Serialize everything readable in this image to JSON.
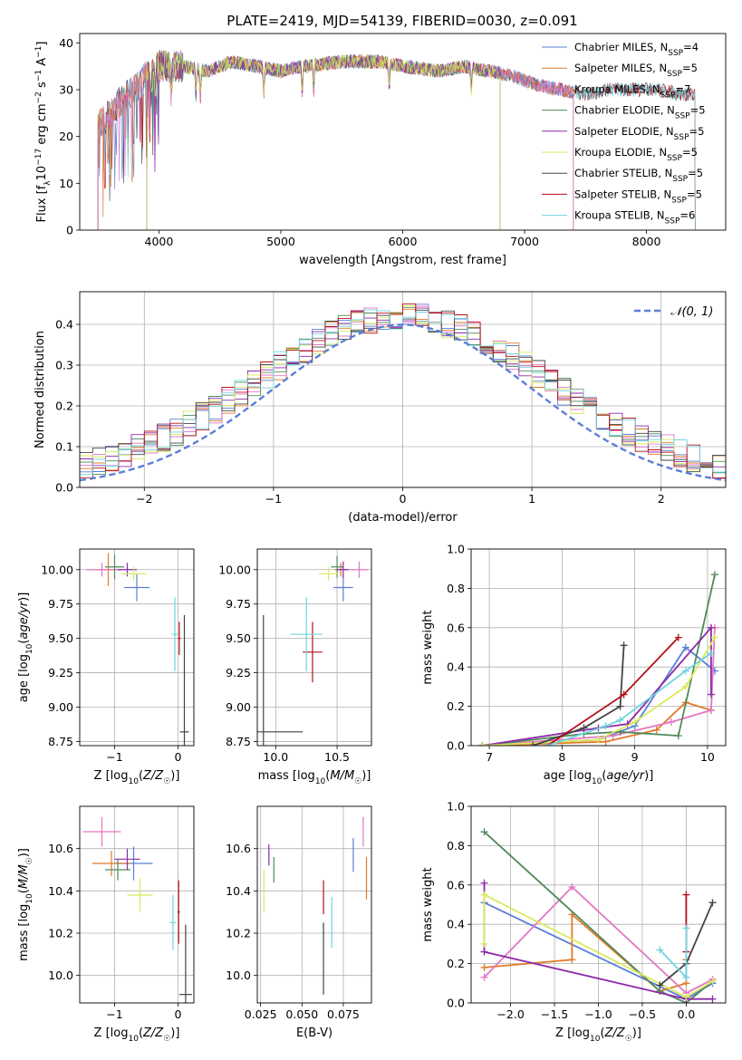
{
  "figure_title": "PLATE=2419, MJD=54139, FIBERID=0030, z=0.091",
  "colors": {
    "Chabrier MILES": "#5b7fd6",
    "Salpeter MILES": "#e07a2a",
    "Kroupa MILES": "#e377c2",
    "Chabrier ELODIE": "#4f8a5b",
    "Salpeter ELODIE": "#8e2aa8",
    "Kroupa ELODIE": "#d9ea5a",
    "Chabrier STELIB": "#444444",
    "Salpeter STELIB": "#b3101a",
    "Kroupa STELIB": "#6fd3e0",
    "gauss": "#5b7fd6"
  },
  "chart_data": [
    {
      "id": "spectrum",
      "type": "line",
      "xlabel": "wavelength [Angstrom, rest frame]",
      "ylabel": "Flux [f_λ10^-17 erg cm^-2 s^-1 A^-1]",
      "xlim": [
        3350,
        8650
      ],
      "ylim": [
        0,
        42
      ],
      "xticks": [
        4000,
        5000,
        6000,
        7000,
        8000
      ],
      "yticks": [
        0,
        10,
        20,
        30,
        40
      ],
      "legend_position": "top-right",
      "legend": [
        {
          "label": "Chabrier MILES, N",
          "sub": "SSP",
          "suffix": "=4",
          "series": "Chabrier MILES"
        },
        {
          "label": "Salpeter MILES, N",
          "sub": "SSP",
          "suffix": "=5",
          "series": "Salpeter MILES"
        },
        {
          "label": "Kroupa MILES, N",
          "sub": "SSP",
          "suffix": "=7",
          "series": "Kroupa MILES"
        },
        {
          "label": "Chabrier ELODIE, N",
          "sub": "SSP",
          "suffix": "=5",
          "series": "Chabrier ELODIE"
        },
        {
          "label": "Salpeter ELODIE, N",
          "sub": "SSP",
          "suffix": "=5",
          "series": "Salpeter ELODIE"
        },
        {
          "label": "Kroupa ELODIE, N",
          "sub": "SSP",
          "suffix": "=5",
          "series": "Kroupa ELODIE"
        },
        {
          "label": "Chabrier STELIB, N",
          "sub": "SSP",
          "suffix": "=5",
          "series": "Chabrier STELIB"
        },
        {
          "label": "Salpeter STELIB, N",
          "sub": "SSP",
          "suffix": "=5",
          "series": "Salpeter STELIB"
        },
        {
          "label": "Kroupa STELIB, N",
          "sub": "SSP",
          "suffix": "=6",
          "series": "Kroupa STELIB"
        }
      ],
      "continuum": [
        [
          3500,
          22
        ],
        [
          3600,
          25
        ],
        [
          3700,
          28
        ],
        [
          3800,
          30
        ],
        [
          3900,
          33
        ],
        [
          4000,
          35
        ],
        [
          4200,
          35
        ],
        [
          4400,
          34
        ],
        [
          4600,
          36
        ],
        [
          4800,
          35
        ],
        [
          5000,
          34
        ],
        [
          5200,
          35
        ],
        [
          5500,
          36
        ],
        [
          5800,
          36
        ],
        [
          6000,
          35
        ],
        [
          6300,
          34
        ],
        [
          6500,
          35
        ],
        [
          6700,
          34
        ],
        [
          6900,
          33
        ],
        [
          7100,
          31
        ],
        [
          7300,
          30
        ],
        [
          7500,
          29
        ],
        [
          7700,
          30
        ],
        [
          7900,
          30
        ],
        [
          8100,
          30
        ],
        [
          8300,
          29
        ],
        [
          8400,
          29
        ]
      ],
      "series_ranges": [
        {
          "series": "Chabrier MILES",
          "x": [
            3500,
            7400
          ]
        },
        {
          "series": "Salpeter MILES",
          "x": [
            3500,
            7400
          ]
        },
        {
          "series": "Kroupa MILES",
          "x": [
            3500,
            7400
          ]
        },
        {
          "series": "Chabrier ELODIE",
          "x": [
            3900,
            6800
          ]
        },
        {
          "series": "Salpeter ELODIE",
          "x": [
            3900,
            6800
          ]
        },
        {
          "series": "Kroupa ELODIE",
          "x": [
            3900,
            6800
          ]
        },
        {
          "series": "Chabrier STELIB",
          "x": [
            3500,
            8400
          ]
        },
        {
          "series": "Salpeter STELIB",
          "x": [
            3500,
            8400
          ]
        },
        {
          "series": "Kroupa STELIB",
          "x": [
            3500,
            8400
          ]
        }
      ]
    },
    {
      "id": "residuals",
      "type": "line",
      "xlabel": "(data-model)/error",
      "ylabel": "Normed distribution",
      "xlim": [
        -2.5,
        2.5
      ],
      "ylim": [
        0,
        0.48
      ],
      "xticks": [
        -2,
        -1,
        0,
        1,
        2
      ],
      "yticks": [
        0.0,
        0.1,
        0.2,
        0.3,
        0.4
      ],
      "grid": true,
      "legend_position": "top-right",
      "legend_label": "𝒩(0, 1)",
      "gaussian": {
        "mean": 0,
        "sigma": 1
      },
      "bin_width": 0.1
    },
    {
      "id": "age-Z",
      "type": "scatter",
      "xlabel": "Z [log10(Z/Z☉)]",
      "ylabel": "age  [log10(age/yr)]",
      "xlim": [
        -1.55,
        0.25
      ],
      "ylim": [
        8.72,
        10.15
      ],
      "xticks": [
        -1,
        0
      ],
      "yticks": [
        8.75,
        9.0,
        9.25,
        9.5,
        9.75,
        10.0
      ],
      "grid": true,
      "points": [
        {
          "series": "Chabrier MILES",
          "x": -0.65,
          "xerr": 0.2,
          "y": 9.87,
          "yerr": 0.1
        },
        {
          "series": "Salpeter MILES",
          "x": -1.1,
          "xerr": 0.2,
          "y": 10.0,
          "yerr": 0.12
        },
        {
          "series": "Kroupa MILES",
          "x": -1.2,
          "xerr": 0.25,
          "y": 10.0,
          "yerr": 0.05
        },
        {
          "series": "Chabrier ELODIE",
          "x": -1.0,
          "xerr": 0.15,
          "y": 10.02,
          "yerr": 0.09
        },
        {
          "series": "Salpeter ELODIE",
          "x": -0.8,
          "xerr": 0.15,
          "y": 10.0,
          "yerr": 0.05
        },
        {
          "series": "Kroupa ELODIE",
          "x": -0.7,
          "xerr": 0.2,
          "y": 9.97,
          "yerr": 0.05
        },
        {
          "series": "Chabrier STELIB",
          "x": 0.1,
          "xerr": 0.07,
          "y": 8.82,
          "yerr": 0.85
        },
        {
          "series": "Salpeter STELIB",
          "x": 0.02,
          "xerr": 0.02,
          "y": 9.5,
          "yerr": 0.12
        },
        {
          "series": "Kroupa STELIB",
          "x": -0.05,
          "xerr": 0.05,
          "y": 9.53,
          "yerr": 0.27
        }
      ]
    },
    {
      "id": "age-mass",
      "type": "scatter",
      "xlabel": "mass [log10(M/M☉)]",
      "ylabel": "",
      "xlim": [
        9.85,
        10.78
      ],
      "ylim": [
        8.72,
        10.15
      ],
      "xticks": [
        10.0,
        10.5
      ],
      "yticks": [
        8.75,
        9.0,
        9.25,
        9.5,
        9.75,
        10.0
      ],
      "grid": true,
      "points": [
        {
          "series": "Chabrier MILES",
          "x": 10.55,
          "xerr": 0.08,
          "y": 9.87,
          "yerr": 0.1
        },
        {
          "series": "Salpeter MILES",
          "x": 10.53,
          "xerr": 0.05,
          "y": 10.0,
          "yerr": 0.05
        },
        {
          "series": "Kroupa MILES",
          "x": 10.68,
          "xerr": 0.07,
          "y": 10.0,
          "yerr": 0.06
        },
        {
          "series": "Chabrier ELODIE",
          "x": 10.5,
          "xerr": 0.05,
          "y": 10.02,
          "yerr": 0.08
        },
        {
          "series": "Salpeter ELODIE",
          "x": 10.55,
          "xerr": 0.05,
          "y": 10.0,
          "yerr": 0.06
        },
        {
          "series": "Kroupa ELODIE",
          "x": 10.43,
          "xerr": 0.08,
          "y": 9.97,
          "yerr": 0.05
        },
        {
          "series": "Chabrier STELIB",
          "x": 9.9,
          "xerr": 0.32,
          "y": 8.82,
          "yerr": 0.85
        },
        {
          "series": "Salpeter STELIB",
          "x": 10.3,
          "xerr": 0.08,
          "y": 9.4,
          "yerr": 0.22
        },
        {
          "series": "Kroupa STELIB",
          "x": 10.25,
          "xerr": 0.13,
          "y": 9.53,
          "yerr": 0.27
        }
      ]
    },
    {
      "id": "weight-age",
      "type": "line",
      "xlabel": "age  [log10(age/yr)]",
      "ylabel": "mass weight",
      "xlim": [
        6.75,
        10.25
      ],
      "ylim": [
        0,
        1.0
      ],
      "xticks": [
        7,
        8,
        9,
        10
      ],
      "yticks": [
        0.0,
        0.2,
        0.4,
        0.6,
        0.8,
        1.0
      ],
      "grid": true,
      "series": [
        {
          "name": "Chabrier MILES",
          "x": [
            6.9,
            8.5,
            9.0,
            9.7,
            10.1
          ],
          "values": [
            0.0,
            0.03,
            0.1,
            0.5,
            0.38
          ]
        },
        {
          "name": "Salpeter MILES",
          "x": [
            6.9,
            8.6,
            9.3,
            9.7,
            10.05
          ],
          "values": [
            0.0,
            0.02,
            0.08,
            0.22,
            0.18
          ]
        },
        {
          "name": "Kroupa MILES",
          "x": [
            6.9,
            8.7,
            9.5,
            10.05,
            10.1
          ],
          "values": [
            0.0,
            0.05,
            0.12,
            0.18,
            0.6
          ]
        },
        {
          "name": "Chabrier ELODIE",
          "x": [
            6.9,
            8.3,
            8.8,
            9.6,
            10.1
          ],
          "values": [
            0.0,
            0.06,
            0.07,
            0.05,
            0.87
          ]
        },
        {
          "name": "Salpeter ELODIE",
          "x": [
            6.9,
            8.5,
            8.9,
            10.05,
            10.05
          ],
          "values": [
            0.0,
            0.09,
            0.11,
            0.6,
            0.26
          ]
        },
        {
          "name": "Kroupa ELODIE",
          "x": [
            6.9,
            8.5,
            9.0,
            9.7,
            10.1
          ],
          "values": [
            0.0,
            0.03,
            0.12,
            0.3,
            0.55
          ]
        },
        {
          "name": "Chabrier STELIB",
          "x": [
            7.6,
            8.3,
            8.8,
            8.85
          ],
          "values": [
            0.0,
            0.09,
            0.2,
            0.51
          ]
        },
        {
          "name": "Salpeter STELIB",
          "x": [
            7.8,
            8.85,
            9.6
          ],
          "values": [
            0.0,
            0.26,
            0.55
          ]
        },
        {
          "name": "Kroupa STELIB",
          "x": [
            7.8,
            8.6,
            8.8,
            9.7,
            10.05
          ],
          "values": [
            0.0,
            0.1,
            0.13,
            0.38,
            0.47
          ]
        }
      ]
    },
    {
      "id": "mass-Z",
      "type": "scatter",
      "xlabel": "Z [log10(Z/Z☉)]",
      "ylabel": "mass [log10(M/M☉)]",
      "xlim": [
        -1.55,
        0.25
      ],
      "ylim": [
        9.87,
        10.8
      ],
      "xticks": [
        -1,
        0
      ],
      "yticks": [
        10.0,
        10.2,
        10.4,
        10.6
      ],
      "grid": true,
      "points": [
        {
          "series": "Chabrier MILES",
          "x": -0.7,
          "xerr": 0.3,
          "y": 10.53,
          "yerr": 0.08
        },
        {
          "series": "Salpeter MILES",
          "x": -1.05,
          "xerr": 0.3,
          "y": 10.53,
          "yerr": 0.06
        },
        {
          "series": "Kroupa MILES",
          "x": -1.2,
          "xerr": 0.3,
          "y": 10.68,
          "yerr": 0.07
        },
        {
          "series": "Chabrier ELODIE",
          "x": -0.95,
          "xerr": 0.2,
          "y": 10.5,
          "yerr": 0.05
        },
        {
          "series": "Salpeter ELODIE",
          "x": -0.8,
          "xerr": 0.2,
          "y": 10.55,
          "yerr": 0.05
        },
        {
          "series": "Kroupa ELODIE",
          "x": -0.6,
          "xerr": 0.2,
          "y": 10.38,
          "yerr": 0.08
        },
        {
          "series": "Chabrier STELIB",
          "x": 0.12,
          "xerr": 0.1,
          "y": 9.91,
          "yerr": 0.33
        },
        {
          "series": "Salpeter STELIB",
          "x": 0.01,
          "xerr": 0.02,
          "y": 10.3,
          "yerr": 0.15
        },
        {
          "series": "Kroupa STELIB",
          "x": -0.08,
          "xerr": 0.05,
          "y": 10.25,
          "yerr": 0.13
        }
      ]
    },
    {
      "id": "mass-EBV",
      "type": "scatter",
      "xlabel": "E(B-V)",
      "ylabel": "",
      "xlim": [
        0.023,
        0.092
      ],
      "ylim": [
        9.87,
        10.8
      ],
      "xticks": [
        0.025,
        0.05,
        0.075
      ],
      "xtick_labels": [
        "0.025",
        "0.050",
        "0.075"
      ],
      "yticks": [
        10.0,
        10.2,
        10.4,
        10.6
      ],
      "grid": true,
      "points": [
        {
          "series": "Chabrier MILES",
          "x": 0.081,
          "y": 10.57,
          "yerr": 0.08
        },
        {
          "series": "Salpeter MILES",
          "x": 0.089,
          "y": 10.46,
          "yerr": 0.1
        },
        {
          "series": "Kroupa MILES",
          "x": 0.087,
          "y": 10.68,
          "yerr": 0.07
        },
        {
          "series": "Chabrier ELODIE",
          "x": 0.033,
          "y": 10.5,
          "yerr": 0.06
        },
        {
          "series": "Salpeter ELODIE",
          "x": 0.03,
          "y": 10.57,
          "yerr": 0.05
        },
        {
          "series": "Kroupa ELODIE",
          "x": 0.027,
          "y": 10.4,
          "yerr": 0.1
        },
        {
          "series": "Chabrier STELIB",
          "x": 0.063,
          "y": 10.08,
          "yerr": 0.17
        },
        {
          "series": "Salpeter STELIB",
          "x": 0.063,
          "y": 10.37,
          "yerr": 0.08
        },
        {
          "series": "Kroupa STELIB",
          "x": 0.068,
          "y": 10.25,
          "yerr": 0.12
        }
      ]
    },
    {
      "id": "weight-Z",
      "type": "line",
      "xlabel": "Z [log10(Z/Z☉)]",
      "ylabel": "mass weight",
      "xlim": [
        -2.45,
        0.45
      ],
      "ylim": [
        0,
        1.0
      ],
      "xticks": [
        -2.0,
        -1.5,
        -1.0,
        -0.5,
        0.0
      ],
      "grid": true,
      "yticks": [
        0.0,
        0.2,
        0.4,
        0.6,
        0.8,
        1.0
      ],
      "series": [
        {
          "name": "Chabrier MILES",
          "x": [
            -2.3,
            0.0,
            0.3
          ],
          "values": [
            0.51,
            0.02,
            0.1
          ]
        },
        {
          "name": "Salpeter MILES",
          "x": [
            -2.3,
            -1.3,
            -1.3,
            -0.3,
            0.0,
            0.0
          ],
          "values": [
            0.18,
            0.22,
            0.45,
            0.06,
            0.1,
            0.22
          ]
        },
        {
          "name": "Kroupa MILES",
          "x": [
            -2.3,
            -1.3,
            0.0,
            0.3
          ],
          "values": [
            0.13,
            0.59,
            0.05,
            0.12
          ]
        },
        {
          "name": "Chabrier ELODIE",
          "x": [
            -2.3,
            -0.3,
            0.0,
            0.3
          ],
          "values": [
            0.87,
            0.06,
            0.0,
            0.11
          ]
        },
        {
          "name": "Salpeter ELODIE",
          "x": [
            -2.3,
            -2.3,
            0.0,
            0.3
          ],
          "values": [
            0.61,
            0.26,
            0.02,
            0.02
          ]
        },
        {
          "name": "Kroupa ELODIE",
          "x": [
            -2.3,
            -2.3,
            0.0,
            0.3
          ],
          "values": [
            0.3,
            0.55,
            0.03,
            0.11
          ]
        },
        {
          "name": "Chabrier STELIB",
          "x": [
            -0.3,
            0.0,
            0.3
          ],
          "values": [
            0.09,
            0.2,
            0.51
          ]
        },
        {
          "name": "Salpeter STELIB",
          "x": [
            0.0,
            0.0
          ],
          "values": [
            0.26,
            0.55
          ]
        },
        {
          "name": "Kroupa STELIB",
          "x": [
            -0.3,
            0.0,
            0.0
          ],
          "values": [
            0.27,
            0.13,
            0.38
          ]
        }
      ]
    }
  ]
}
